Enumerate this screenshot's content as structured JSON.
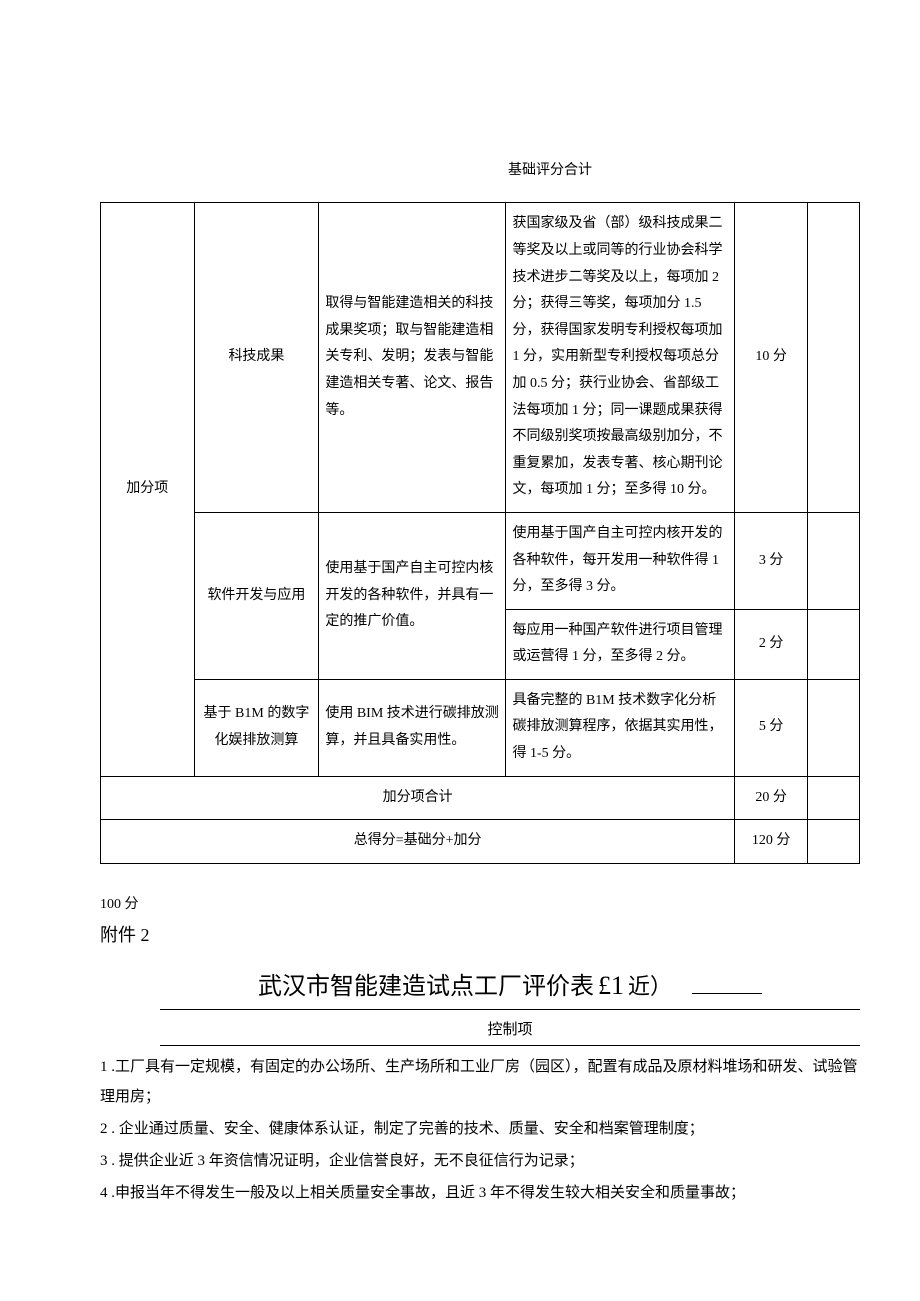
{
  "basic_total_label": "基础评分合计",
  "table": {
    "category": "加分项",
    "rows": [
      {
        "sub": "科技成果",
        "desc": "取得与智能建造相关的科技成果奖项；取与智能建造相关专利、发明；发表与智能建造相关专著、论文、报告等。",
        "criteria": "获国家级及省（部）级科技成果二等奖及以上或同等的行业协会科学技术进步二等奖及以上，每项加 2 分；获得三等奖，每项加分 1.5 分，获得国家发明专利授权每项加 1 分，实用新型专利授权每项总分加 0.5 分；获行业协会、省部级工法每项加 1 分；同一课题成果获得不同级别奖项按最高级别加分，不重复累加，发表专著、核心期刊论文，每项加 1 分；至多得 10 分。",
        "score": "10 分"
      },
      {
        "sub": "软件开发与应用",
        "desc": "使用基于国产自主可控内核开发的各种软件，并具有一定的推广价值。",
        "criteria_a": "使用基于国产自主可控内核开发的各种软件，每开发用一种软件得 1 分，至多得 3 分。",
        "score_a": "3 分",
        "criteria_b": "每应用一种国产软件进行项目管理或运营得 1 分，至多得 2 分。",
        "score_b": "2 分"
      },
      {
        "sub": "基于 B1M 的数字化娱排放测算",
        "desc": "使用 BIM 技术进行碳排放测算，并且具备实用性。",
        "criteria": "具备完整的 B1M 技术数字化分析碳排放测算程序，依据其实用性，得 1-5 分。",
        "score": "5 分"
      }
    ],
    "bonus_total_label": "加分项合计",
    "bonus_total_score": "20 分",
    "grand_total_label": "总得分=基础分+加分",
    "grand_total_score": "120 分"
  },
  "score_note": "100 分",
  "attachment_label": "附件 2",
  "title_main": "武汉市智能建造试点工厂评价表",
  "title_e1": "£1",
  "title_tail": "近）",
  "control_header": "控制项",
  "control_items": [
    "1 .工厂具有一定规模，有固定的办公场所、生产场所和工业厂房（园区），配置有成品及原材料堆场和研发、试验管理用房；",
    "2 . 企业通过质量、安全、健康体系认证，制定了完善的技术、质量、安全和档案管理制度；",
    "3 . 提供企业近 3 年资信情况证明，企业信誉良好，无不良征信行为记录；",
    "4 .申报当年不得发生一般及以上相关质量安全事故，且近 3 年不得发生较大相关安全和质量事故；"
  ]
}
